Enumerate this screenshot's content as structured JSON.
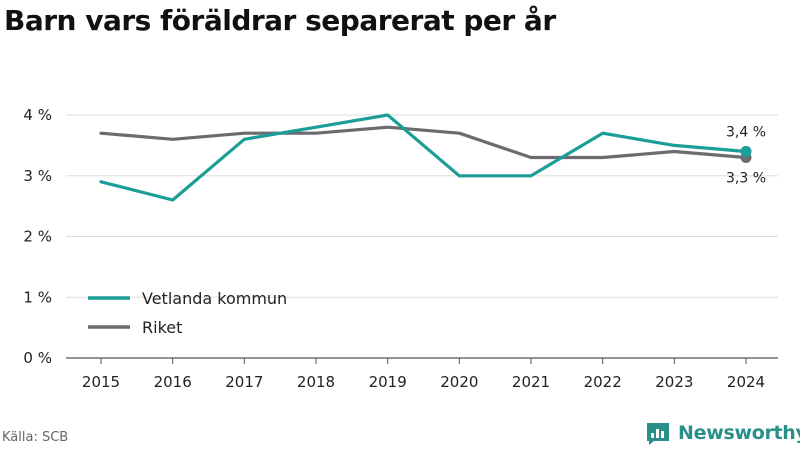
{
  "title": "Barn vars föräldrar separerat per år",
  "source": "Källa: SCB",
  "brand": {
    "name": "Newsworthy"
  },
  "colors": {
    "vetlanda": "#1a9e96",
    "riket": "#6b6b70",
    "grid": "#dddddd",
    "axis": "#555555",
    "brand": "#2a8f88"
  },
  "chart_data": {
    "type": "line",
    "x": [
      "2015",
      "2016",
      "2017",
      "2018",
      "2019",
      "2020",
      "2021",
      "2022",
      "2023",
      "2024"
    ],
    "series": [
      {
        "name": "Vetlanda kommun",
        "values": [
          2.9,
          2.6,
          3.6,
          3.8,
          4.0,
          3.0,
          3.0,
          3.7,
          3.5,
          3.4
        ],
        "color": "#1a9e96"
      },
      {
        "name": "Riket",
        "values": [
          3.7,
          3.6,
          3.7,
          3.7,
          3.8,
          3.7,
          3.3,
          3.3,
          3.4,
          3.3
        ],
        "color": "#6b6b70"
      }
    ],
    "ylim": [
      0,
      4
    ],
    "yticks": [
      "0 %",
      "1 %",
      "2 %",
      "3 %",
      "4 %"
    ],
    "end_labels": [
      "3,4 %",
      "3,3 %"
    ],
    "grid": true,
    "legend": "bottom-left"
  }
}
